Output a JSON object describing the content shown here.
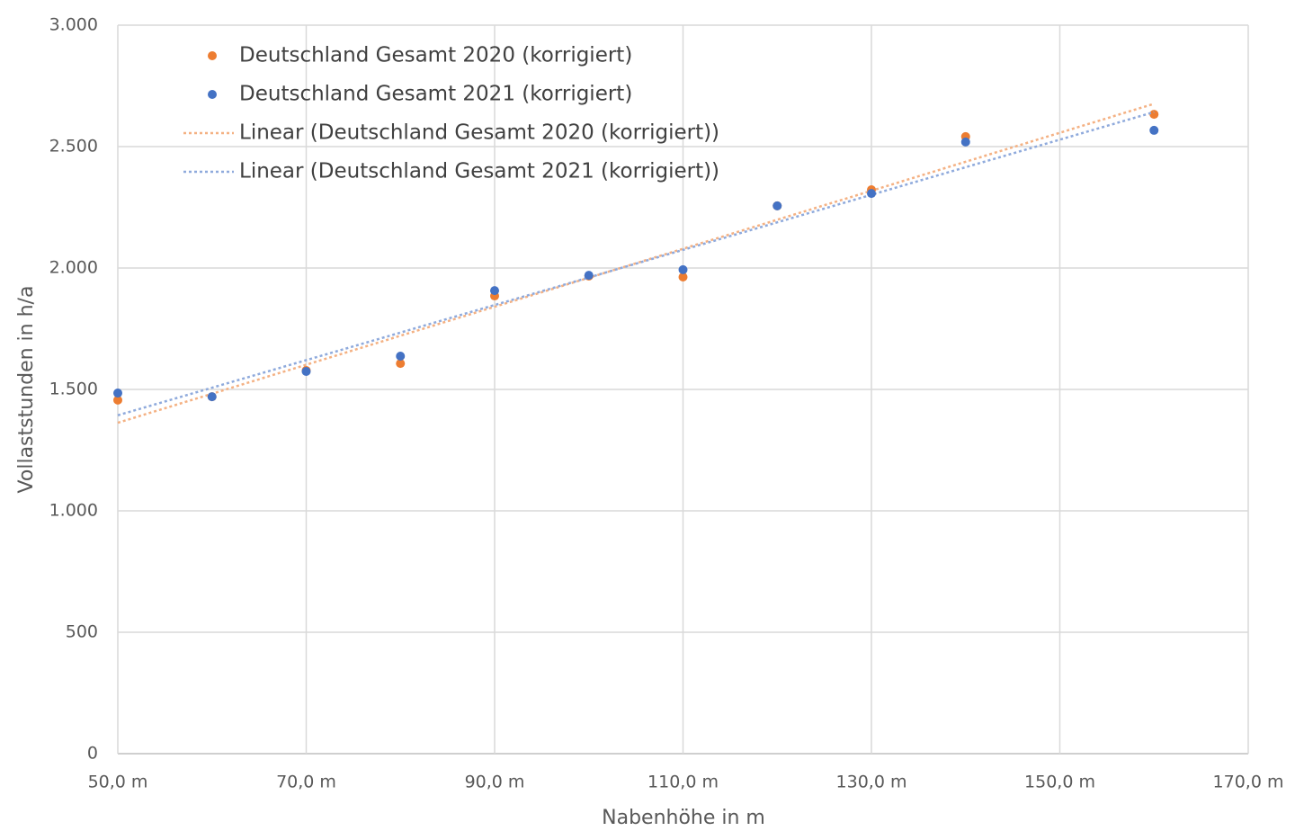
{
  "chart_data": {
    "type": "scatter",
    "x_label": "Nabenhöhe in m",
    "y_label": "Vollaststunden in h/a",
    "xlim": [
      50,
      170
    ],
    "xticks": [
      {
        "value": 50,
        "label": "50,0 m"
      },
      {
        "value": 70,
        "label": "70,0 m"
      },
      {
        "value": 90,
        "label": "90,0 m"
      },
      {
        "value": 110,
        "label": "110,0 m"
      },
      {
        "value": 130,
        "label": "130,0 m"
      },
      {
        "value": 150,
        "label": "150,0 m"
      },
      {
        "value": 170,
        "label": "170,0 m"
      }
    ],
    "ylim": [
      0,
      3000
    ],
    "yticks": [
      0,
      500,
      {
        "value": 1000,
        "label": "1.000"
      },
      {
        "value": 1500,
        "label": "1.500"
      },
      {
        "value": 2000,
        "label": "2.000"
      },
      {
        "value": 2500,
        "label": "2.500"
      },
      {
        "value": 3000,
        "label": "3.000"
      }
    ],
    "grid": true,
    "legend": "top-left",
    "series": [
      {
        "name": "Deutschland Gesamt 2020 (korrigiert)",
        "color": "#ed7d31",
        "x": [
          50,
          60,
          70,
          80,
          90,
          100,
          110,
          120,
          130,
          140,
          160
        ],
        "values": [
          1456,
          1470,
          1578,
          1607,
          1885,
          1967,
          1963,
          2256,
          2322,
          2541,
          2633
        ],
        "trendline": {
          "name": "Linear (Deutschland Gesamt 2020 (korrigiert))",
          "color": "#f4b183",
          "kind": "linear"
        }
      },
      {
        "name": "Deutschland Gesamt 2021 (korrigiert)",
        "color": "#4472c4",
        "x": [
          50,
          60,
          70,
          80,
          90,
          100,
          110,
          120,
          130,
          140,
          160
        ],
        "values": [
          1485,
          1470,
          1574,
          1637,
          1907,
          1970,
          1993,
          2256,
          2307,
          2519,
          2567
        ],
        "trendline": {
          "name": "Linear (Deutschland Gesamt 2021 (korrigiert))",
          "color": "#8faadc",
          "kind": "linear"
        }
      }
    ]
  }
}
